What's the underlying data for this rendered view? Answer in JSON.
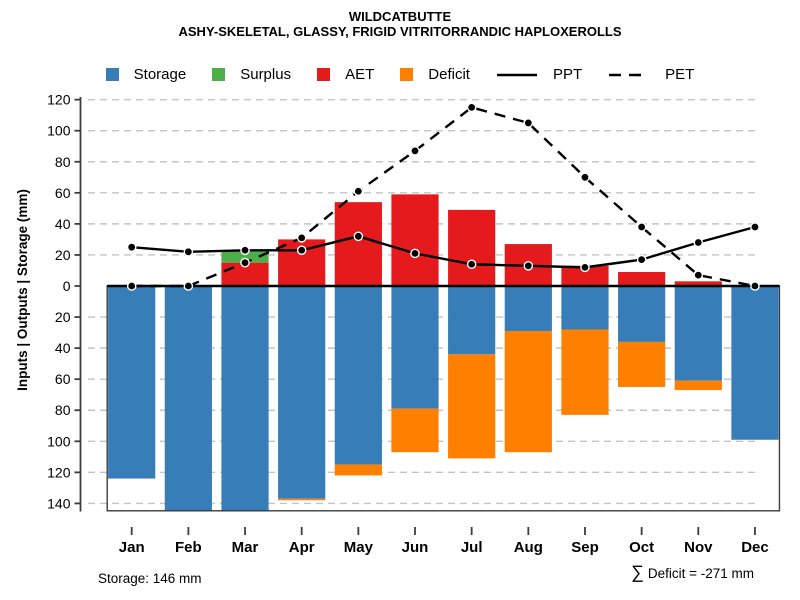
{
  "header": {
    "title": "WILDCATBUTTE",
    "subtitle": "ASHY-SKELETAL, GLASSY, FRIGID VITRITORRANDIC HAPLOXEROLLS"
  },
  "legend": [
    {
      "label": "Storage",
      "swatch": "square",
      "color": "#377EB8"
    },
    {
      "label": "Surplus",
      "swatch": "square",
      "color": "#4DAF4A"
    },
    {
      "label": "AET",
      "swatch": "square",
      "color": "#E41A1C"
    },
    {
      "label": "Deficit",
      "swatch": "square",
      "color": "#FF7F00"
    },
    {
      "label": "PPT",
      "swatch": "line-solid",
      "color": "#000000"
    },
    {
      "label": "PET",
      "swatch": "line-dashed",
      "color": "#000000"
    }
  ],
  "axes": {
    "ylabel": "Inputs | Outputs | Storage    (mm)",
    "y_tick_values": [
      120,
      100,
      80,
      60,
      40,
      20,
      0,
      -20,
      -40,
      -60,
      -80,
      -100,
      -120,
      -140
    ]
  },
  "footer": {
    "storage_text": "Storage: 146 mm",
    "sigma": "∑",
    "deficit_text": "Deficit = -271 mm"
  },
  "chart_data": {
    "type": "bar",
    "subtype": "monthly-water-balance",
    "title": "WILDCATBUTTE",
    "subtitle": "ASHY-SKELETAL, GLASSY, FRIGID VITRITORRANDIC HAPLOXEROLLS",
    "xlabel": "",
    "ylabel": "Inputs | Outputs | Storage (mm)",
    "ylim": [
      -146,
      125
    ],
    "grid": "horizontal dashed every 20 mm",
    "legend_position": "top center",
    "categories": [
      "Jan",
      "Feb",
      "Mar",
      "Apr",
      "May",
      "Jun",
      "Jul",
      "Aug",
      "Sep",
      "Oct",
      "Nov",
      "Dec"
    ],
    "series": [
      {
        "name": "Storage",
        "kind": "bar",
        "direction": "down",
        "color": "#377EB8",
        "values": [
          124,
          146,
          146,
          137,
          115,
          79,
          44,
          29,
          28,
          36,
          61,
          99
        ]
      },
      {
        "name": "Surplus",
        "kind": "bar",
        "direction": "up",
        "stacked_on": "AET",
        "color": "#4DAF4A",
        "values": [
          0,
          0,
          8,
          0,
          0,
          0,
          0,
          0,
          0,
          0,
          0,
          0
        ]
      },
      {
        "name": "AET",
        "kind": "bar",
        "direction": "up",
        "color": "#E41A1C",
        "values": [
          0,
          0,
          15,
          30,
          54,
          59,
          49,
          27,
          13,
          9,
          3,
          0
        ]
      },
      {
        "name": "Deficit",
        "kind": "bar",
        "direction": "down",
        "stacked_on": "Storage",
        "color": "#FF7F00",
        "values": [
          0,
          0,
          0,
          1,
          7,
          28,
          67,
          78,
          55,
          29,
          6,
          0
        ]
      },
      {
        "name": "PPT",
        "kind": "line",
        "style": "solid",
        "color": "#000000",
        "values": [
          25,
          22,
          23,
          23,
          32,
          21,
          14,
          13,
          12,
          17,
          28,
          38
        ]
      },
      {
        "name": "PET",
        "kind": "line",
        "style": "dashed",
        "color": "#000000",
        "values": [
          0,
          0,
          15,
          31,
          61,
          87,
          115,
          105,
          70,
          38,
          7,
          0
        ]
      }
    ],
    "annotations": {
      "total_storage_mm": 146,
      "total_deficit_mm": -271
    }
  }
}
